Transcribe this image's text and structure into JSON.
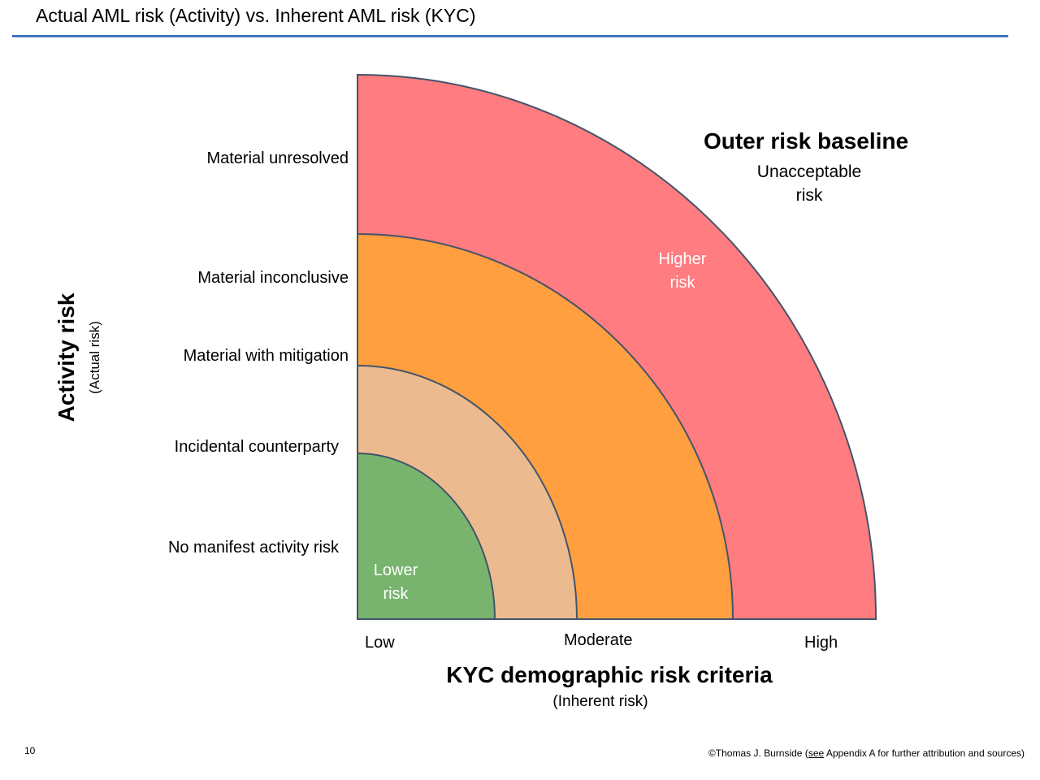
{
  "title": "Actual AML risk (Activity)  vs. Inherent AML risk (KYC)",
  "colors": {
    "title_rule": "#4472c4",
    "zone_unacceptable": "#ff7c80",
    "zone_higher": "#ff9f40",
    "zone_moderate": "#ebbb8f",
    "zone_lower": "#78b46e",
    "ring_stroke": "#44546a"
  },
  "y_axis": {
    "title": "Activity risk",
    "subtitle": "(Actual risk)",
    "levels": [
      "Material unresolved",
      "Material inconclusive",
      "Material with mitigation",
      "Incidental counterparty",
      "No manifest activity risk"
    ]
  },
  "x_axis": {
    "title": "KYC demographic risk criteria",
    "subtitle": "(Inherent  risk)",
    "ticks": [
      "Low",
      "Moderate",
      "High"
    ]
  },
  "zones": {
    "outer_title": "Outer risk baseline",
    "outer_sub_line1": "Unacceptable",
    "outer_sub_line2": "risk",
    "higher_line1": "Higher",
    "higher_line2": "risk",
    "lower_line1": "Lower",
    "lower_line2": "risk"
  },
  "footer": {
    "page_number": "10",
    "credit_prefix": "©Thomas J. Burnside (",
    "credit_link": "see",
    "credit_suffix": " Appendix A for further attribution and sources)"
  }
}
